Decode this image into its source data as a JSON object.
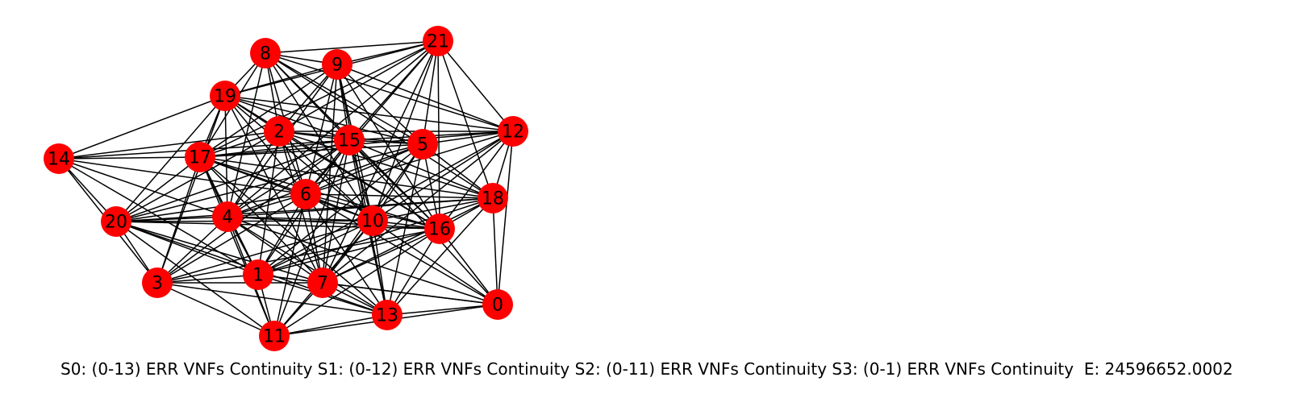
{
  "graph": {
    "node_color": "#ff0000",
    "edge_color": "#000000",
    "nodes": [
      "0",
      "1",
      "2",
      "3",
      "4",
      "5",
      "6",
      "7",
      "8",
      "9",
      "10",
      "11",
      "12",
      "13",
      "14",
      "15",
      "16",
      "17",
      "18",
      "19",
      "20",
      "21"
    ],
    "edges": [
      [
        "8",
        "9"
      ],
      [
        "8",
        "21"
      ],
      [
        "8",
        "19"
      ],
      [
        "8",
        "2"
      ],
      [
        "8",
        "15"
      ],
      [
        "8",
        "17"
      ],
      [
        "8",
        "4"
      ],
      [
        "8",
        "6"
      ],
      [
        "8",
        "10"
      ],
      [
        "8",
        "16"
      ],
      [
        "8",
        "5"
      ],
      [
        "8",
        "18"
      ],
      [
        "8",
        "12"
      ],
      [
        "21",
        "9"
      ],
      [
        "21",
        "19"
      ],
      [
        "21",
        "15"
      ],
      [
        "21",
        "5"
      ],
      [
        "21",
        "12"
      ],
      [
        "21",
        "18"
      ],
      [
        "21",
        "17"
      ],
      [
        "21",
        "10"
      ],
      [
        "21",
        "16"
      ],
      [
        "21",
        "7"
      ],
      [
        "21",
        "6"
      ],
      [
        "21",
        "4"
      ],
      [
        "21",
        "2"
      ],
      [
        "9",
        "19"
      ],
      [
        "9",
        "17"
      ],
      [
        "9",
        "2"
      ],
      [
        "9",
        "15"
      ],
      [
        "9",
        "5"
      ],
      [
        "9",
        "12"
      ],
      [
        "9",
        "10"
      ],
      [
        "9",
        "16"
      ],
      [
        "9",
        "6"
      ],
      [
        "9",
        "4"
      ],
      [
        "9",
        "7"
      ],
      [
        "9",
        "13"
      ],
      [
        "19",
        "14"
      ],
      [
        "19",
        "17"
      ],
      [
        "19",
        "2"
      ],
      [
        "19",
        "15"
      ],
      [
        "19",
        "5"
      ],
      [
        "19",
        "12"
      ],
      [
        "19",
        "6"
      ],
      [
        "19",
        "4"
      ],
      [
        "19",
        "20"
      ],
      [
        "19",
        "3"
      ],
      [
        "19",
        "10"
      ],
      [
        "19",
        "16"
      ],
      [
        "19",
        "7"
      ],
      [
        "14",
        "17"
      ],
      [
        "14",
        "15"
      ],
      [
        "14",
        "2"
      ],
      [
        "14",
        "20"
      ],
      [
        "14",
        "4"
      ],
      [
        "14",
        "3"
      ],
      [
        "14",
        "6"
      ],
      [
        "14",
        "1"
      ],
      [
        "17",
        "2"
      ],
      [
        "17",
        "15"
      ],
      [
        "17",
        "5"
      ],
      [
        "17",
        "12"
      ],
      [
        "17",
        "6"
      ],
      [
        "17",
        "4"
      ],
      [
        "17",
        "20"
      ],
      [
        "17",
        "3"
      ],
      [
        "17",
        "1"
      ],
      [
        "17",
        "7"
      ],
      [
        "17",
        "10"
      ],
      [
        "17",
        "16"
      ],
      [
        "17",
        "18"
      ],
      [
        "17",
        "13"
      ],
      [
        "17",
        "11"
      ],
      [
        "2",
        "15"
      ],
      [
        "2",
        "5"
      ],
      [
        "2",
        "6"
      ],
      [
        "2",
        "4"
      ],
      [
        "2",
        "20"
      ],
      [
        "2",
        "10"
      ],
      [
        "2",
        "16"
      ],
      [
        "2",
        "18"
      ],
      [
        "2",
        "7"
      ],
      [
        "2",
        "1"
      ],
      [
        "2",
        "12"
      ],
      [
        "15",
        "5"
      ],
      [
        "15",
        "12"
      ],
      [
        "15",
        "18"
      ],
      [
        "15",
        "6"
      ],
      [
        "15",
        "4"
      ],
      [
        "15",
        "20"
      ],
      [
        "15",
        "10"
      ],
      [
        "15",
        "16"
      ],
      [
        "15",
        "7"
      ],
      [
        "15",
        "1"
      ],
      [
        "15",
        "3"
      ],
      [
        "15",
        "13"
      ],
      [
        "15",
        "11"
      ],
      [
        "15",
        "0"
      ],
      [
        "5",
        "12"
      ],
      [
        "5",
        "18"
      ],
      [
        "5",
        "6"
      ],
      [
        "5",
        "10"
      ],
      [
        "5",
        "16"
      ],
      [
        "5",
        "4"
      ],
      [
        "5",
        "7"
      ],
      [
        "5",
        "1"
      ],
      [
        "5",
        "13"
      ],
      [
        "5",
        "20"
      ],
      [
        "12",
        "18"
      ],
      [
        "12",
        "16"
      ],
      [
        "12",
        "10"
      ],
      [
        "12",
        "0"
      ],
      [
        "12",
        "6"
      ],
      [
        "12",
        "7"
      ],
      [
        "12",
        "1"
      ],
      [
        "6",
        "18"
      ],
      [
        "6",
        "10"
      ],
      [
        "6",
        "16"
      ],
      [
        "6",
        "4"
      ],
      [
        "6",
        "20"
      ],
      [
        "6",
        "3"
      ],
      [
        "6",
        "1"
      ],
      [
        "6",
        "7"
      ],
      [
        "6",
        "13"
      ],
      [
        "6",
        "11"
      ],
      [
        "6",
        "0"
      ],
      [
        "18",
        "16"
      ],
      [
        "18",
        "10"
      ],
      [
        "18",
        "4"
      ],
      [
        "18",
        "7"
      ],
      [
        "18",
        "13"
      ],
      [
        "18",
        "0"
      ],
      [
        "18",
        "1"
      ],
      [
        "18",
        "20"
      ],
      [
        "4",
        "20"
      ],
      [
        "4",
        "10"
      ],
      [
        "4",
        "16"
      ],
      [
        "4",
        "3"
      ],
      [
        "4",
        "1"
      ],
      [
        "4",
        "7"
      ],
      [
        "4",
        "13"
      ],
      [
        "4",
        "11"
      ],
      [
        "4",
        "0"
      ],
      [
        "20",
        "10"
      ],
      [
        "20",
        "3"
      ],
      [
        "20",
        "1"
      ],
      [
        "20",
        "7"
      ],
      [
        "20",
        "11"
      ],
      [
        "20",
        "13"
      ],
      [
        "20",
        "16"
      ],
      [
        "10",
        "16"
      ],
      [
        "10",
        "7"
      ],
      [
        "10",
        "1"
      ],
      [
        "10",
        "13"
      ],
      [
        "10",
        "3"
      ],
      [
        "10",
        "11"
      ],
      [
        "10",
        "0"
      ],
      [
        "16",
        "7"
      ],
      [
        "16",
        "13"
      ],
      [
        "16",
        "0"
      ],
      [
        "16",
        "1"
      ],
      [
        "16",
        "3"
      ],
      [
        "16",
        "11"
      ],
      [
        "3",
        "1"
      ],
      [
        "3",
        "7"
      ],
      [
        "3",
        "13"
      ],
      [
        "3",
        "11"
      ],
      [
        "1",
        "7"
      ],
      [
        "1",
        "13"
      ],
      [
        "1",
        "11"
      ],
      [
        "1",
        "0"
      ],
      [
        "7",
        "13"
      ],
      [
        "7",
        "11"
      ],
      [
        "7",
        "0"
      ],
      [
        "13",
        "11"
      ],
      [
        "13",
        "0"
      ],
      [
        "11",
        "0"
      ]
    ]
  },
  "caption": "S0: (0-13) ERR VNFs Continuity S1: (0-12) ERR VNFs Continuity S2: (0-11) ERR VNFs Continuity S3: (0-1) ERR VNFs Continuity  E: 24596652.0002"
}
